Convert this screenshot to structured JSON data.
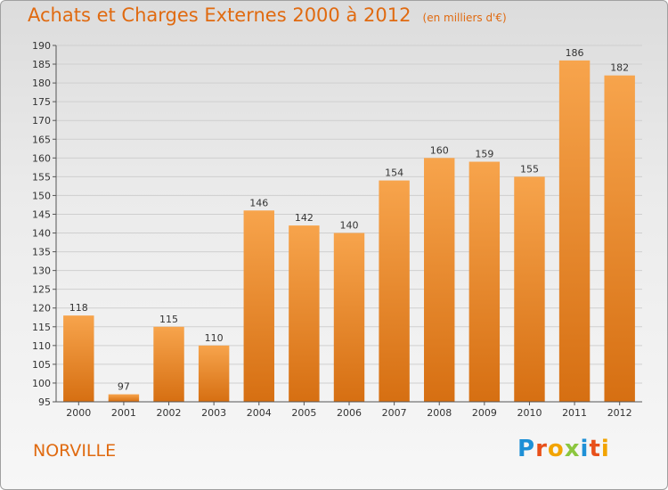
{
  "title": "Achats et Charges Externes 2000 à 2012",
  "unit": "(en milliers d'€)",
  "commune": "NORVILLE",
  "logo": {
    "letters": [
      "P",
      "r",
      "o",
      "x",
      "i",
      "t",
      "i"
    ],
    "colors": [
      "#1e90d6",
      "#e8501a",
      "#f2a400",
      "#8cc63f",
      "#1e90d6",
      "#e8501a",
      "#f2a400"
    ]
  },
  "colors": {
    "bar_top": "#f7a44c",
    "bar_bottom": "#d66f12",
    "title": "#e06a10"
  },
  "chart_data": {
    "type": "bar",
    "categories": [
      "2000",
      "2001",
      "2002",
      "2003",
      "2004",
      "2005",
      "2006",
      "2007",
      "2008",
      "2009",
      "2010",
      "2011",
      "2012"
    ],
    "values": [
      118,
      97,
      115,
      110,
      146,
      142,
      140,
      154,
      160,
      159,
      155,
      186,
      182
    ],
    "ylim": [
      95,
      190
    ],
    "yticks": [
      95,
      100,
      105,
      110,
      115,
      120,
      125,
      130,
      135,
      140,
      145,
      150,
      155,
      160,
      165,
      170,
      175,
      180,
      185,
      190
    ],
    "grid": true,
    "legend": "none"
  }
}
